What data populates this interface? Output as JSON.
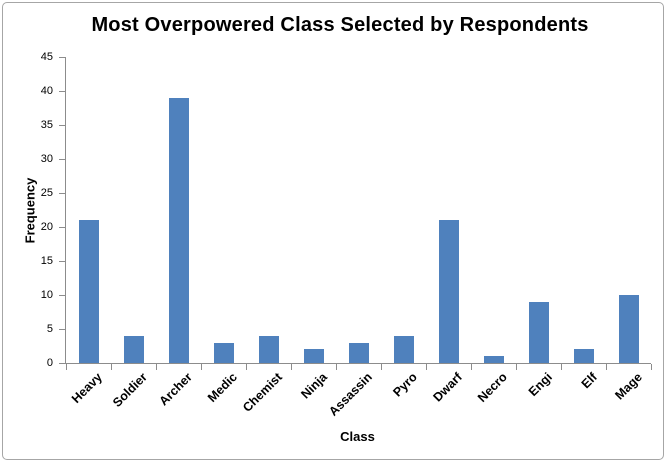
{
  "chart_data": {
    "type": "bar",
    "title": "Most Overpowered Class Selected by Respondents",
    "xlabel": "Class",
    "ylabel": "Frequency",
    "categories": [
      "Heavy",
      "Soldier",
      "Archer",
      "Medic",
      "Chemist",
      "Ninja",
      "Assassin",
      "Pyro",
      "Dwarf",
      "Necro",
      "Engi",
      "Elf",
      "Mage"
    ],
    "values": [
      21,
      4,
      39,
      3,
      4,
      2,
      3,
      4,
      21,
      1,
      9,
      2,
      10
    ],
    "ylim": [
      0,
      45
    ],
    "ytick_step": 5,
    "grid": false,
    "legend": false,
    "bar_color": "#4f81bd",
    "axis_color": "#8c8c8c",
    "text_color": "#000000",
    "frame_border_color": "#a6a6a6"
  }
}
